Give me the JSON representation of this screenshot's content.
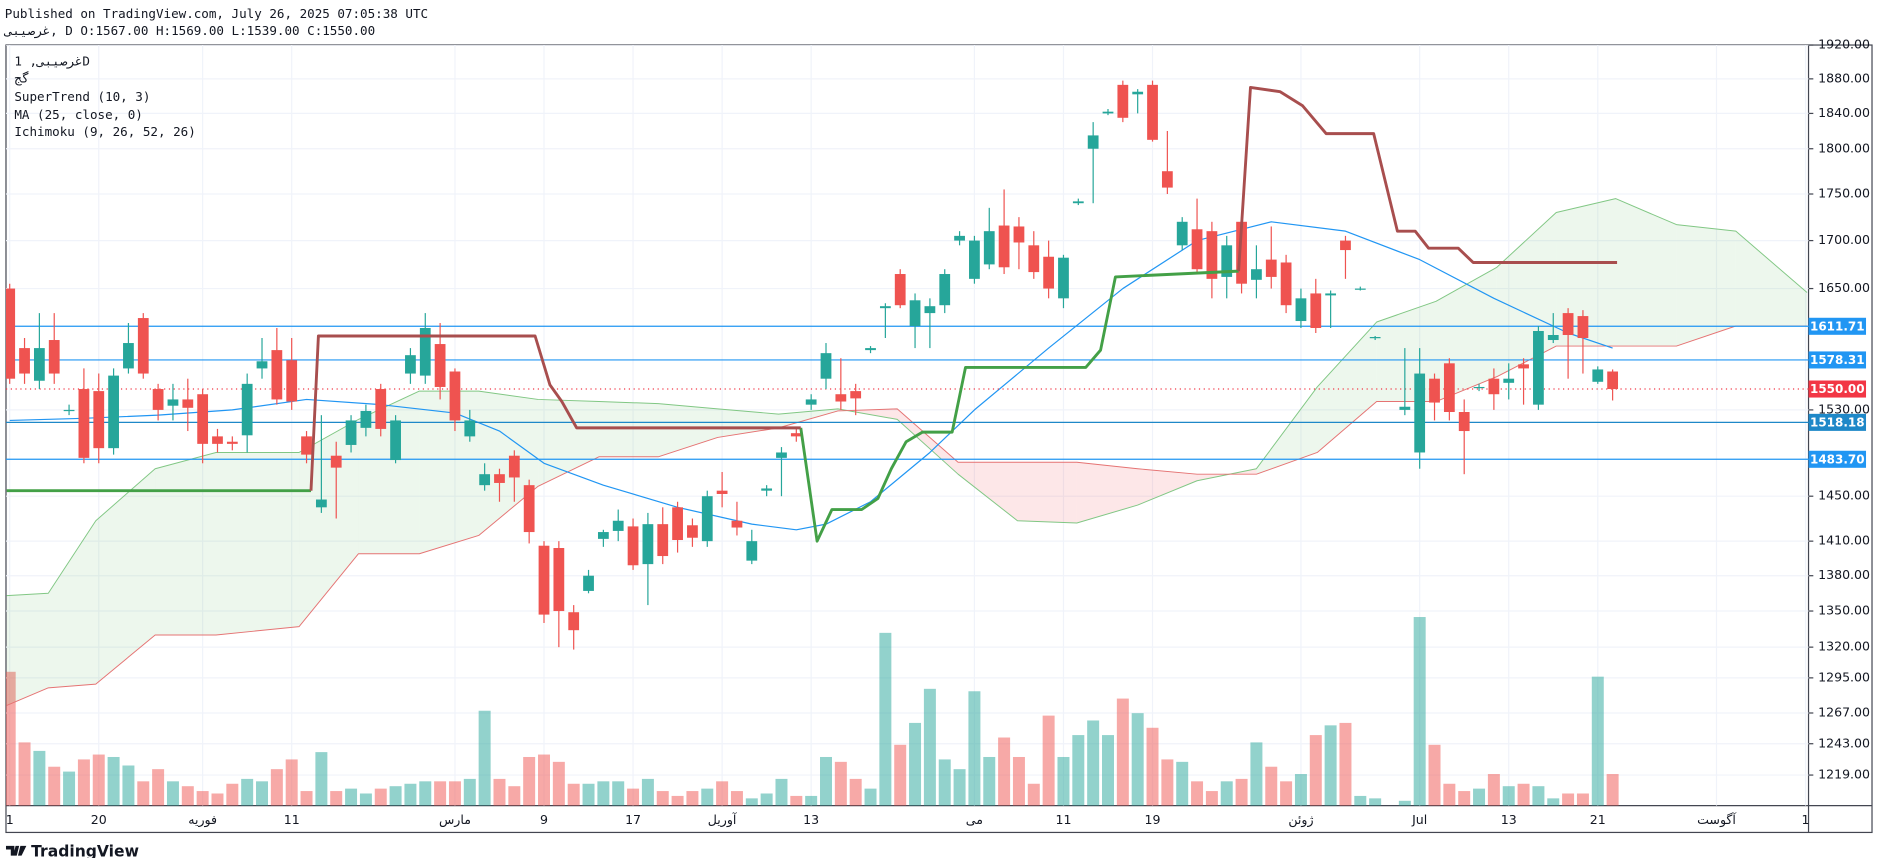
{
  "header": {
    "published": "Published on TradingView.com, July 26, 2025 07:05:38 UTC",
    "quote": "غرصیبی, D O:1567.00 H:1569.00 L:1539.00 C:1550.00"
  },
  "legend": {
    "symbol": "غرصیبی, 1D",
    "exchange": "گج"
  },
  "footer": {
    "brand": "TradingView"
  },
  "chart_data": {
    "type": "candlestick",
    "log_scale": true,
    "grid": true,
    "up_color": "#26a69a",
    "down_color": "#ef5350",
    "xlim": [
      -0.25,
      121.2
    ],
    "ylim": [
      1196,
      1920
    ],
    "vlim": [
      0,
      160
    ],
    "yticks": [
      {
        "value": 1920,
        "label": "1920.00"
      },
      {
        "value": 1880,
        "label": "1880.00"
      },
      {
        "value": 1840,
        "label": "1840.00"
      },
      {
        "value": 1800,
        "label": "1800.00"
      },
      {
        "value": 1750,
        "label": "1750.00"
      },
      {
        "value": 1700,
        "label": "1700.00"
      },
      {
        "value": 1650,
        "label": "1650.00"
      },
      {
        "value": 1530,
        "label": "1530.00"
      },
      {
        "value": 1450,
        "label": "1450.00"
      },
      {
        "value": 1410,
        "label": "1410.00"
      },
      {
        "value": 1380,
        "label": "1380.00"
      },
      {
        "value": 1350,
        "label": "1350.00"
      },
      {
        "value": 1320,
        "label": "1320.00"
      },
      {
        "value": 1295,
        "label": "1295.00"
      },
      {
        "value": 1267,
        "label": "1267.00"
      },
      {
        "value": 1243,
        "label": "1243.00"
      },
      {
        "value": 1219,
        "label": "1219.00"
      }
    ],
    "categories": [
      "1",
      null,
      null,
      null,
      null,
      null,
      "20",
      null,
      null,
      null,
      null,
      null,
      null,
      "فوریه",
      null,
      null,
      null,
      null,
      null,
      "11",
      null,
      null,
      null,
      null,
      null,
      null,
      null,
      null,
      null,
      null,
      "مارس",
      null,
      null,
      null,
      null,
      null,
      "9",
      null,
      null,
      null,
      null,
      null,
      "17",
      null,
      null,
      null,
      null,
      null,
      "آوریل",
      null,
      null,
      null,
      null,
      null,
      "13",
      null,
      null,
      null,
      null,
      null,
      null,
      null,
      null,
      null,
      null,
      "می",
      null,
      null,
      null,
      null,
      null,
      "11",
      null,
      null,
      null,
      null,
      null,
      "19",
      null,
      null,
      null,
      null,
      null,
      null,
      null,
      null,
      null,
      "ژوئن",
      null,
      null,
      null,
      null,
      null,
      null,
      null,
      "Jul",
      null,
      null,
      null,
      null,
      null,
      "13",
      null,
      null,
      null,
      null,
      null,
      "21",
      null,
      null,
      null,
      null,
      null,
      null,
      null,
      "آگوست",
      null,
      null,
      null,
      null,
      null,
      "1"
    ],
    "ohlc": [
      [
        1650,
        1655,
        1555,
        1560
      ],
      [
        1590,
        1600,
        1555,
        1565
      ],
      [
        1558,
        1625,
        1550,
        1590
      ],
      [
        1598,
        1625,
        1555,
        1565
      ],
      [
        1530,
        1535,
        1525,
        1530
      ],
      [
        1550,
        1570,
        1480,
        1485
      ],
      [
        1548,
        1565,
        1480,
        1494
      ],
      [
        1494,
        1570,
        1488,
        1563
      ],
      [
        1570,
        1615,
        1565,
        1595
      ],
      [
        1620,
        1625,
        1560,
        1565
      ],
      [
        1550,
        1555,
        1520,
        1530
      ],
      [
        1534,
        1555,
        1520,
        1540
      ],
      [
        1540,
        1560,
        1510,
        1532
      ],
      [
        1545,
        1550,
        1480,
        1498
      ],
      [
        1505,
        1512,
        1490,
        1498
      ],
      [
        1500,
        1505,
        1492,
        1498
      ],
      [
        1506,
        1565,
        1490,
        1555
      ],
      [
        1570,
        1600,
        1560,
        1577
      ],
      [
        1588,
        1610,
        1535,
        1540
      ],
      [
        1578,
        1600,
        1530,
        1538
      ],
      [
        1505,
        1510,
        1480,
        1488
      ],
      [
        1440,
        1525,
        1435,
        1447
      ],
      [
        1487,
        1500,
        1430,
        1476
      ],
      [
        1497,
        1525,
        1490,
        1520
      ],
      [
        1513,
        1535,
        1505,
        1529
      ],
      [
        1550,
        1555,
        1505,
        1512
      ],
      [
        1483,
        1525,
        1480,
        1520
      ],
      [
        1565,
        1590,
        1555,
        1583
      ],
      [
        1563,
        1625,
        1555,
        1610
      ],
      [
        1594,
        1615,
        1540,
        1552
      ],
      [
        1567,
        1570,
        1510,
        1520
      ],
      [
        1505,
        1530,
        1500,
        1520
      ],
      [
        1460,
        1480,
        1455,
        1470
      ],
      [
        1470,
        1475,
        1445,
        1462
      ],
      [
        1487,
        1492,
        1445,
        1467
      ],
      [
        1460,
        1465,
        1408,
        1418
      ],
      [
        1406,
        1410,
        1340,
        1347
      ],
      [
        1404,
        1410,
        1320,
        1350
      ],
      [
        1349,
        1355,
        1318,
        1334
      ],
      [
        1367,
        1385,
        1365,
        1380
      ],
      [
        1412,
        1420,
        1405,
        1418
      ],
      [
        1419,
        1438,
        1410,
        1428
      ],
      [
        1423,
        1430,
        1385,
        1389
      ],
      [
        1390,
        1435,
        1355,
        1425
      ],
      [
        1425,
        1440,
        1390,
        1397
      ],
      [
        1440,
        1445,
        1400,
        1411
      ],
      [
        1424,
        1430,
        1405,
        1413
      ],
      [
        1410,
        1455,
        1405,
        1450
      ],
      [
        1455,
        1472,
        1440,
        1452
      ],
      [
        1428,
        1445,
        1415,
        1422
      ],
      [
        1393,
        1420,
        1390,
        1410
      ],
      [
        1455,
        1460,
        1450,
        1457
      ],
      [
        1485,
        1495,
        1450,
        1490
      ],
      [
        1508,
        1512,
        1500,
        1505
      ],
      [
        1535,
        1545,
        1530,
        1540
      ],
      [
        1560,
        1595,
        1550,
        1585
      ],
      [
        1545,
        1580,
        1530,
        1538
      ],
      [
        1548,
        1555,
        1525,
        1541
      ],
      [
        1588,
        1592,
        1585,
        1590
      ],
      [
        1630,
        1635,
        1600,
        1632
      ],
      [
        1665,
        1670,
        1630,
        1633
      ],
      [
        1612,
        1645,
        1590,
        1638
      ],
      [
        1625,
        1640,
        1590,
        1632
      ],
      [
        1633,
        1670,
        1625,
        1665
      ],
      [
        1700,
        1710,
        1695,
        1705
      ],
      [
        1660,
        1705,
        1655,
        1700
      ],
      [
        1675,
        1735,
        1670,
        1710
      ],
      [
        1716,
        1755,
        1665,
        1672
      ],
      [
        1715,
        1725,
        1670,
        1698
      ],
      [
        1695,
        1710,
        1660,
        1667
      ],
      [
        1683,
        1700,
        1640,
        1650
      ],
      [
        1640,
        1685,
        1630,
        1682
      ],
      [
        1740,
        1745,
        1738,
        1742
      ],
      [
        1800,
        1830,
        1740,
        1815
      ],
      [
        1840,
        1845,
        1838,
        1842
      ],
      [
        1873,
        1878,
        1830,
        1835
      ],
      [
        1862,
        1868,
        1840,
        1865
      ],
      [
        1873,
        1878,
        1808,
        1810
      ],
      [
        1775,
        1820,
        1750,
        1757
      ],
      [
        1695,
        1725,
        1690,
        1720
      ],
      [
        1712,
        1745,
        1665,
        1670
      ],
      [
        1710,
        1720,
        1640,
        1660
      ],
      [
        1662,
        1705,
        1640,
        1695
      ],
      [
        1720,
        1725,
        1645,
        1655
      ],
      [
        1659,
        1695,
        1640,
        1670
      ],
      [
        1680,
        1715,
        1650,
        1662
      ],
      [
        1677,
        1685,
        1625,
        1633
      ],
      [
        1617,
        1650,
        1610,
        1640
      ],
      [
        1645,
        1660,
        1605,
        1610
      ],
      [
        1643,
        1648,
        1610,
        1645
      ],
      [
        1700,
        1705,
        1660,
        1690
      ],
      [
        1650,
        1652,
        1648,
        1650
      ],
      [
        1600,
        1602,
        1598,
        1601
      ],
      null,
      [
        1530,
        1590,
        1525,
        1533
      ],
      [
        1490,
        1590,
        1475,
        1565
      ],
      [
        1560,
        1565,
        1520,
        1537
      ],
      [
        1575,
        1580,
        1520,
        1528
      ],
      [
        1528,
        1540,
        1470,
        1510
      ],
      [
        1551,
        1555,
        1548,
        1552
      ],
      [
        1560,
        1570,
        1530,
        1545
      ],
      [
        1556,
        1575,
        1540,
        1560
      ],
      [
        1574,
        1580,
        1535,
        1570
      ],
      [
        1535,
        1612,
        1530,
        1607
      ],
      [
        1598,
        1625,
        1595,
        1603
      ],
      [
        1625,
        1630,
        1560,
        1603
      ],
      [
        1622,
        1628,
        1565,
        1600
      ],
      [
        1557,
        1572,
        1555,
        1569
      ],
      [
        1567,
        1569,
        1539,
        1550
      ],
      null,
      null,
      null,
      null,
      null,
      null,
      null,
      null,
      null,
      null,
      null,
      null,
      null
    ],
    "volume": [
      110,
      52,
      45,
      32,
      28,
      38,
      42,
      40,
      33,
      20,
      30,
      20,
      16,
      12,
      10,
      18,
      22,
      20,
      30,
      38,
      12,
      44,
      12,
      14,
      10,
      14,
      16,
      18,
      20,
      20,
      20,
      22,
      78,
      22,
      16,
      40,
      42,
      36,
      18,
      18,
      20,
      20,
      14,
      22,
      12,
      8,
      12,
      14,
      20,
      12,
      6,
      10,
      22,
      8,
      8,
      40,
      36,
      22,
      14,
      142,
      50,
      68,
      96,
      38,
      30,
      94,
      40,
      56,
      40,
      18,
      74,
      40,
      58,
      70,
      58,
      88,
      76,
      64,
      38,
      36,
      20,
      12,
      20,
      22,
      52,
      32,
      20,
      26,
      58,
      66,
      68,
      8,
      6,
      null,
      4,
      155,
      50,
      18,
      12,
      14,
      26,
      16,
      18,
      16,
      6,
      10,
      10,
      106,
      26,
      null,
      null,
      null,
      null,
      null,
      null,
      null,
      null,
      null,
      null,
      null,
      null,
      null
    ],
    "levels": [
      {
        "value": 1611.71,
        "color": "#2196f3"
      },
      {
        "value": 1578.31,
        "color": "#2196f3"
      },
      {
        "value": 1550,
        "label": "1550.00",
        "color": "#f23645",
        "dashed": true
      },
      {
        "value": 1518.18,
        "color": "#1e88c8"
      },
      {
        "value": 1483.7,
        "label": "1483.70",
        "color": "#2196f3"
      }
    ],
    "supertrend": {
      "name": "SuperTrend (10, 3)",
      "up_color": "#43a047",
      "down_color": "#a84e4e",
      "up_x": [
        -0.2,
        20.3,
        37,
        53.3,
        54.4,
        55.4,
        57.4,
        58.5,
        59.4,
        60.4,
        61.5,
        63.5,
        64.4,
        72.5,
        73.5,
        74.5,
        82.8
      ],
      "up": [
        1455,
        1455,
        null,
        1513,
        1410,
        1438,
        1438,
        1448,
        1475,
        1500,
        1509,
        1509,
        1571,
        1571,
        1588,
        1662,
        1668
      ],
      "down_x": [
        20.3,
        20.8,
        35.4,
        36.4,
        37.2,
        38.2,
        53.3,
        70,
        82.8,
        83.6,
        85.6,
        87.1,
        88.7,
        91.9,
        93.5,
        94.7,
        95.6,
        97.6,
        98.6,
        108.3
      ],
      "down": [
        1455,
        1602,
        1602,
        1554,
        1538,
        1513,
        1513,
        null,
        1668,
        1870,
        1865,
        1849,
        1817,
        1817,
        1710,
        1710,
        1692,
        1692,
        1677,
        1677
      ]
    },
    "ma": {
      "name": "MA (25, close, 0)",
      "color": "#2196f3",
      "x": [
        0,
        5,
        10,
        15,
        20,
        25,
        30,
        33,
        36,
        40,
        45,
        50,
        53,
        55,
        58,
        62,
        65,
        70,
        75,
        80,
        85,
        90,
        95,
        100,
        105,
        108
      ],
      "values": [
        1520,
        1522,
        1525,
        1530,
        1540,
        1535,
        1527,
        1510,
        1480,
        1460,
        1440,
        1425,
        1420,
        1425,
        1445,
        1490,
        1530,
        1590,
        1650,
        1700,
        1720,
        1710,
        1680,
        1640,
        1605,
        1590
      ]
    },
    "ichimoku": {
      "name": "Ichimoku (9, 26, 52, 26)",
      "a_color": "#81c784",
      "b_color": "#e57373",
      "x": [
        -0.2,
        2.6,
        5.8,
        9.8,
        13.9,
        19.5,
        23.5,
        27.6,
        31.6,
        35.6,
        39.7,
        43.7,
        47.7,
        51.8,
        55.8,
        59.8,
        63.9,
        67.9,
        71.9,
        76,
        80,
        84,
        88.1,
        92.1,
        96.1,
        100.2,
        104.2,
        108.2,
        112.3,
        116.3,
        121.1
      ],
      "span_a": [
        1363,
        1365,
        1428,
        1475,
        1490,
        1490,
        1521,
        1548,
        1548,
        1540,
        1538,
        1536,
        1531,
        1526,
        1531,
        1521,
        1470,
        1428,
        1426,
        1442,
        1464,
        1475,
        1552,
        1616,
        1637,
        1672,
        1730,
        1745,
        1717,
        1710,
        1646
      ],
      "span_b": [
        1273,
        1287,
        1290,
        1330,
        1330,
        1337,
        1399,
        1399,
        1415,
        1459,
        1486,
        1486,
        1504,
        1513,
        1529,
        1531,
        1481,
        1481,
        1481,
        1475,
        1470,
        1470,
        1490,
        1538,
        1538,
        1562,
        1592,
        1592,
        1592,
        1612,
        1612
      ]
    }
  }
}
